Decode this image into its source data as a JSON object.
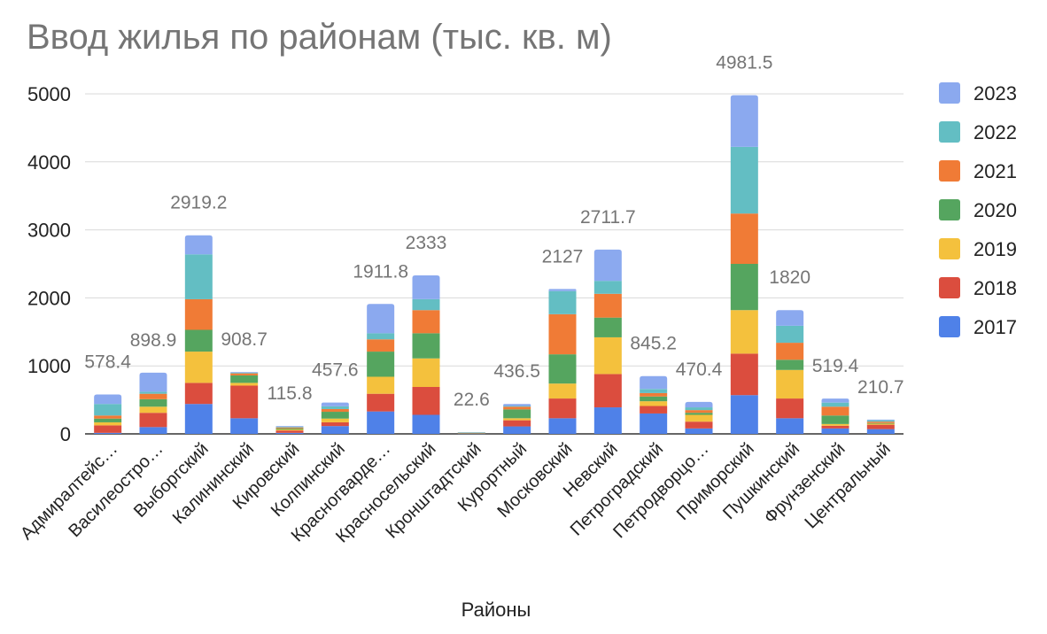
{
  "chart_data": {
    "type": "bar",
    "stacked": true,
    "title": "Ввод жилья по районам (тыс. кв. м)",
    "xlabel": "Районы",
    "ylabel": "",
    "ylim": [
      0,
      5000
    ],
    "yticks": [
      0,
      1000,
      2000,
      3000,
      4000,
      5000
    ],
    "grid": true,
    "legend_position": "right",
    "categories": [
      "Адмиралтейс…",
      "Василеостро…",
      "Выборгский",
      "Калининский",
      "Кировский",
      "Колпинский",
      "Красногварде…",
      "Красносельский",
      "Кронштадтский",
      "Курортный",
      "Московский",
      "Невский",
      "Петроградский",
      "Петродворцо…",
      "Приморский",
      "Пушкинский",
      "Фрунзенский",
      "Центральный"
    ],
    "totals": [
      "578.4",
      "898.9",
      "2919.2",
      "908.7",
      "115.8",
      "457.6",
      "1911.8",
      "2333",
      "22.6",
      "436.5",
      "2127",
      "2711.7",
      "845.2",
      "470.4",
      "4981.5",
      "1820",
      "519.4",
      "210.7"
    ],
    "series": [
      {
        "name": "2017",
        "color": "#4f81e8",
        "values": [
          15,
          100,
          440,
          230,
          15,
          115,
          330,
          280,
          5,
          110,
          230,
          390,
          300,
          80,
          570,
          230,
          80,
          70
        ]
      },
      {
        "name": "2018",
        "color": "#db4d3e",
        "values": [
          110,
          210,
          310,
          480,
          35,
          55,
          260,
          410,
          5,
          90,
          290,
          490,
          110,
          100,
          610,
          290,
          40,
          65
        ]
      },
      {
        "name": "2019",
        "color": "#f4c13d",
        "values": [
          45,
          90,
          460,
          40,
          15,
          55,
          250,
          420,
          3,
          30,
          220,
          540,
          70,
          100,
          640,
          420,
          25,
          15
        ]
      },
      {
        "name": "2020",
        "color": "#55a55f",
        "values": [
          55,
          110,
          320,
          110,
          15,
          100,
          370,
          370,
          3,
          130,
          430,
          290,
          70,
          30,
          680,
          150,
          125,
          10
        ]
      },
      {
        "name": "2021",
        "color": "#f07b36",
        "values": [
          45,
          80,
          450,
          30,
          15,
          40,
          180,
          340,
          3,
          40,
          590,
          350,
          50,
          40,
          740,
          250,
          130,
          20
        ]
      },
      {
        "name": "2022",
        "color": "#63bec3",
        "values": [
          170,
          30,
          660,
          10,
          10,
          40,
          90,
          160,
          2,
          10,
          340,
          190,
          60,
          40,
          980,
          250,
          60,
          20
        ]
      },
      {
        "name": "2023",
        "color": "#8ba9ef",
        "values": [
          140,
          280,
          280,
          10,
          10,
          55,
          430,
          350,
          2,
          30,
          30,
          460,
          190,
          80,
          760,
          230,
          60,
          10
        ]
      }
    ]
  }
}
